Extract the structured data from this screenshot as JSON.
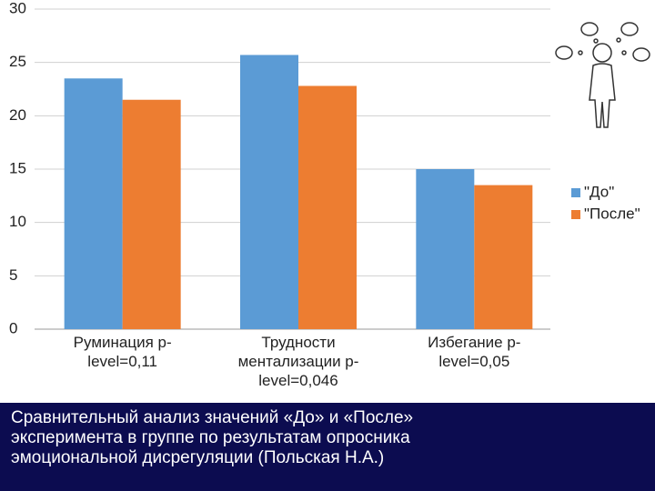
{
  "chart_data": {
    "type": "bar",
    "categories": [
      "Руминация p-level=0,11",
      "Трудности ментализации p-level=0,046",
      "Избегание p-level=0,05"
    ],
    "series": [
      {
        "name": "\"До\"",
        "color": "#5b9bd5",
        "values": [
          23.5,
          25.7,
          15.0
        ]
      },
      {
        "name": "\"После\"",
        "color": "#ed7d31",
        "values": [
          21.5,
          22.8,
          13.5
        ]
      }
    ],
    "ylim": [
      0,
      30
    ],
    "yticks": [
      0,
      5,
      10,
      15,
      20,
      25,
      30
    ],
    "grid": true,
    "legend": "right"
  },
  "caption_lines": [
    "Сравнительный анализ значений «До» и «После»",
    "эксперимента в группе по результатам опросника",
    "эмоциональной дисрегуляции (Польская Н.А.)"
  ]
}
